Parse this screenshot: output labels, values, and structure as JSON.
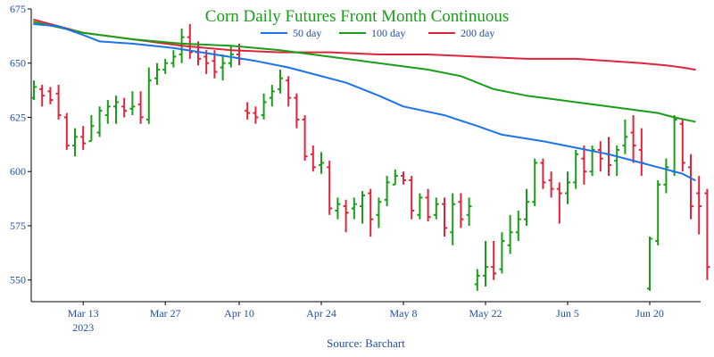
{
  "chart_data": {
    "type": "ohlc",
    "title": "Corn Daily Futures Front Month Continuous",
    "source": "Source: Barchart",
    "ylim": [
      540,
      675
    ],
    "y_ticks": [
      550,
      575,
      600,
      625,
      650,
      675
    ],
    "x_tick_labels": [
      {
        "label": "Mar 13",
        "sub": "2023",
        "index": 6
      },
      {
        "label": "Mar 27",
        "sub": "",
        "index": 16
      },
      {
        "label": "Apr 10",
        "sub": "",
        "index": 25
      },
      {
        "label": "Apr 24",
        "sub": "",
        "index": 35
      },
      {
        "label": "May 8",
        "sub": "",
        "index": 45
      },
      {
        "label": "May 22",
        "sub": "",
        "index": 55
      },
      {
        "label": "Jun 5",
        "sub": "",
        "index": 65
      },
      {
        "label": "Jun 20",
        "sub": "",
        "index": 75
      }
    ],
    "legend": [
      {
        "name": "50 day",
        "color": "#1a73e8"
      },
      {
        "name": "100 day",
        "color": "#1a9e1a"
      },
      {
        "name": "200 day",
        "color": "#e0243c"
      }
    ],
    "colors": {
      "up": "#1a9e1a",
      "down": "#e0243c",
      "title": "#1a9e1a",
      "axis": "#1f4fa8"
    },
    "ohlc": [
      [
        634,
        642,
        633,
        639
      ],
      [
        638,
        640,
        630,
        635
      ],
      [
        637,
        639,
        631,
        633
      ],
      [
        636,
        640,
        624,
        626
      ],
      [
        625,
        627,
        610,
        612
      ],
      [
        612,
        620,
        607,
        616
      ],
      [
        616,
        621,
        610,
        613
      ],
      [
        614,
        626,
        614,
        621
      ],
      [
        618,
        630,
        616,
        628
      ],
      [
        626,
        633,
        622,
        630
      ],
      [
        630,
        635,
        622,
        632
      ],
      [
        630,
        634,
        625,
        628
      ],
      [
        629,
        637,
        626,
        630
      ],
      [
        631,
        637,
        622,
        625
      ],
      [
        624,
        648,
        622,
        642
      ],
      [
        643,
        650,
        640,
        647
      ],
      [
        647,
        652,
        645,
        650
      ],
      [
        650,
        656,
        648,
        653
      ],
      [
        654,
        666,
        650,
        662
      ],
      [
        662,
        668,
        652,
        655
      ],
      [
        655,
        660,
        649,
        652
      ],
      [
        653,
        656,
        645,
        650
      ],
      [
        651,
        656,
        643,
        646
      ],
      [
        648,
        654,
        642,
        650
      ],
      [
        650,
        658,
        648,
        654
      ],
      [
        654,
        659,
        649,
        652
      ],
      [
        628,
        632,
        624,
        627
      ],
      [
        627,
        630,
        622,
        625
      ],
      [
        626,
        636,
        624,
        632
      ],
      [
        634,
        640,
        630,
        637
      ],
      [
        638,
        647,
        636,
        643
      ],
      [
        642,
        644,
        630,
        634
      ],
      [
        634,
        636,
        620,
        624
      ],
      [
        624,
        626,
        605,
        607
      ],
      [
        608,
        612,
        600,
        602
      ],
      [
        603,
        609,
        599,
        604
      ],
      [
        602,
        605,
        580,
        583
      ],
      [
        582,
        588,
        578,
        585
      ],
      [
        584,
        587,
        572,
        581
      ],
      [
        583,
        588,
        578,
        585
      ],
      [
        584,
        591,
        576,
        589
      ],
      [
        590,
        592,
        570,
        578
      ],
      [
        580,
        588,
        574,
        586
      ],
      [
        587,
        598,
        584,
        595
      ],
      [
        594,
        601,
        594,
        598
      ],
      [
        598,
        600,
        594,
        596
      ],
      [
        596,
        598,
        578,
        582
      ],
      [
        580,
        590,
        578,
        588
      ],
      [
        588,
        592,
        577,
        579
      ],
      [
        580,
        588,
        578,
        585
      ],
      [
        585,
        588,
        570,
        574
      ],
      [
        572,
        590,
        566,
        585
      ],
      [
        586,
        590,
        574,
        578
      ],
      [
        580,
        588,
        575,
        584
      ],
      [
        548,
        555,
        545,
        552
      ],
      [
        552,
        568,
        547,
        556
      ],
      [
        556,
        568,
        550,
        553
      ],
      [
        555,
        572,
        553,
        568
      ],
      [
        566,
        580,
        562,
        572
      ],
      [
        572,
        582,
        568,
        578
      ],
      [
        578,
        592,
        575,
        586
      ],
      [
        586,
        606,
        584,
        604
      ],
      [
        604,
        606,
        592,
        595
      ],
      [
        596,
        600,
        588,
        592
      ],
      [
        592,
        595,
        576,
        590
      ],
      [
        590,
        600,
        585,
        595
      ],
      [
        595,
        610,
        592,
        608
      ],
      [
        606,
        612,
        594,
        600
      ],
      [
        600,
        612,
        598,
        610
      ],
      [
        610,
        614,
        600,
        606
      ],
      [
        608,
        616,
        598,
        603
      ],
      [
        605,
        612,
        598,
        610
      ],
      [
        612,
        624,
        608,
        616
      ],
      [
        618,
        626,
        604,
        612
      ],
      [
        610,
        620,
        598,
        604
      ],
      [
        546,
        570,
        545,
        569
      ],
      [
        568,
        596,
        566,
        594
      ],
      [
        594,
        606,
        590,
        602
      ],
      [
        600,
        626,
        598,
        624
      ],
      [
        622,
        624,
        600,
        604
      ],
      [
        602,
        608,
        578,
        584
      ],
      [
        590,
        598,
        571,
        584
      ],
      [
        590,
        592,
        550,
        556
      ]
    ],
    "ma50": [
      [
        0,
        668
      ],
      [
        3,
        667
      ],
      [
        6,
        663
      ],
      [
        8,
        660
      ],
      [
        12,
        659
      ],
      [
        17,
        657
      ],
      [
        22,
        654
      ],
      [
        27,
        651
      ],
      [
        31,
        648
      ],
      [
        34,
        645
      ],
      [
        38,
        641
      ],
      [
        42,
        635
      ],
      [
        45,
        630
      ],
      [
        50,
        626
      ],
      [
        54,
        621
      ],
      [
        57,
        617
      ],
      [
        62,
        614
      ],
      [
        66,
        611
      ],
      [
        70,
        608
      ],
      [
        74,
        604
      ],
      [
        77,
        601
      ],
      [
        79,
        599
      ],
      [
        80.5,
        596
      ]
    ],
    "ma100": [
      [
        0,
        669
      ],
      [
        6,
        664
      ],
      [
        12,
        661
      ],
      [
        18,
        659
      ],
      [
        24,
        658
      ],
      [
        30,
        656
      ],
      [
        36,
        653
      ],
      [
        42,
        650
      ],
      [
        48,
        647
      ],
      [
        52,
        644
      ],
      [
        56,
        638
      ],
      [
        60,
        635
      ],
      [
        64,
        633
      ],
      [
        68,
        631
      ],
      [
        72,
        629
      ],
      [
        76,
        627
      ],
      [
        78,
        625
      ],
      [
        80.5,
        623
      ]
    ],
    "ma200": [
      [
        0,
        670
      ],
      [
        6,
        664
      ],
      [
        12,
        661
      ],
      [
        18,
        658
      ],
      [
        24,
        656
      ],
      [
        30,
        655
      ],
      [
        36,
        655
      ],
      [
        42,
        654
      ],
      [
        48,
        654
      ],
      [
        54,
        653
      ],
      [
        60,
        652
      ],
      [
        66,
        652
      ],
      [
        70,
        651
      ],
      [
        74,
        650
      ],
      [
        77,
        649
      ],
      [
        79,
        648
      ],
      [
        80.5,
        647
      ]
    ]
  }
}
